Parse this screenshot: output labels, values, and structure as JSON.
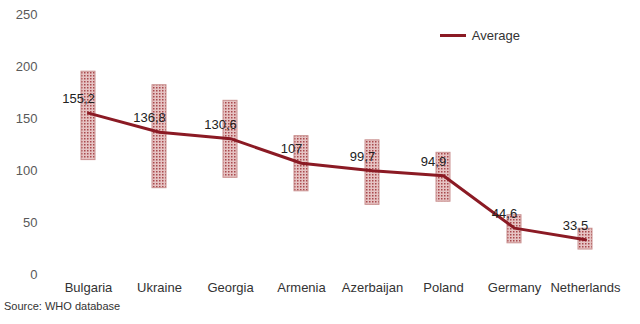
{
  "chart_data": {
    "type": "line",
    "categories": [
      "Bulgaria",
      "Ukraine",
      "Georgia",
      "Armenia",
      "Azerbaijan",
      "Poland",
      "Germany",
      "Netherlands"
    ],
    "series": [
      {
        "name": "Average",
        "color": "#8b1a24",
        "type": "line",
        "values": [
          155.2,
          136.8,
          130.6,
          107,
          99.7,
          94.9,
          44.6,
          33.5
        ],
        "value_labels": [
          "155,2",
          "136,8",
          "130,6",
          "107",
          "99,7",
          "94,9",
          "44,6",
          "33,5"
        ]
      }
    ],
    "low": [
      110,
      83,
      93,
      80,
      67,
      70,
      30,
      24
    ],
    "high": [
      195,
      182,
      167,
      133,
      129,
      117,
      57,
      44
    ],
    "ylim": [
      0,
      250
    ],
    "yticks": [
      0,
      50,
      100,
      150,
      200,
      250
    ],
    "grid": false,
    "legend": "top-right",
    "data_labels": true,
    "caption": "Source: WHO database"
  }
}
